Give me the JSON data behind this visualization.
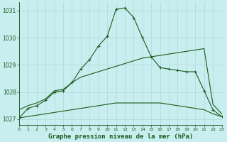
{
  "title": "Graphe pression niveau de la mer (hPa)",
  "bg_color": "#c8eef0",
  "grid_color": "#b0d8d8",
  "line_color": "#1a5c1a",
  "xlim": [
    0,
    23
  ],
  "ylim": [
    1026.8,
    1031.3
  ],
  "yticks": [
    1027,
    1028,
    1029,
    1030,
    1031
  ],
  "xticks": [
    0,
    1,
    2,
    3,
    4,
    5,
    6,
    7,
    8,
    9,
    10,
    11,
    12,
    13,
    14,
    15,
    16,
    17,
    18,
    19,
    20,
    21,
    22,
    23
  ],
  "main_line": [
    1027.05,
    1027.4,
    1027.5,
    1027.7,
    1028.0,
    1028.05,
    1028.35,
    1028.85,
    1029.2,
    1029.7,
    1030.05,
    1031.05,
    1031.1,
    1030.75,
    1030.0,
    1029.3,
    1028.9,
    1028.85,
    1028.8,
    1028.75,
    1028.75,
    1028.05,
    1027.35,
    1027.1
  ],
  "upper_line": [
    1027.35,
    1027.5,
    1027.6,
    1027.75,
    1028.05,
    1028.1,
    1028.35,
    1028.55,
    1028.65,
    1028.75,
    1028.85,
    1028.95,
    1029.05,
    1029.15,
    1029.25,
    1029.3,
    1029.35,
    1029.4,
    1029.45,
    1029.5,
    1029.55,
    1029.6,
    1027.55,
    1027.2
  ],
  "lower_line": [
    1027.05,
    1027.1,
    1027.15,
    1027.2,
    1027.25,
    1027.3,
    1027.35,
    1027.4,
    1027.45,
    1027.5,
    1027.55,
    1027.6,
    1027.6,
    1027.6,
    1027.6,
    1027.6,
    1027.6,
    1027.55,
    1027.5,
    1027.45,
    1027.4,
    1027.35,
    1027.2,
    1027.1
  ]
}
